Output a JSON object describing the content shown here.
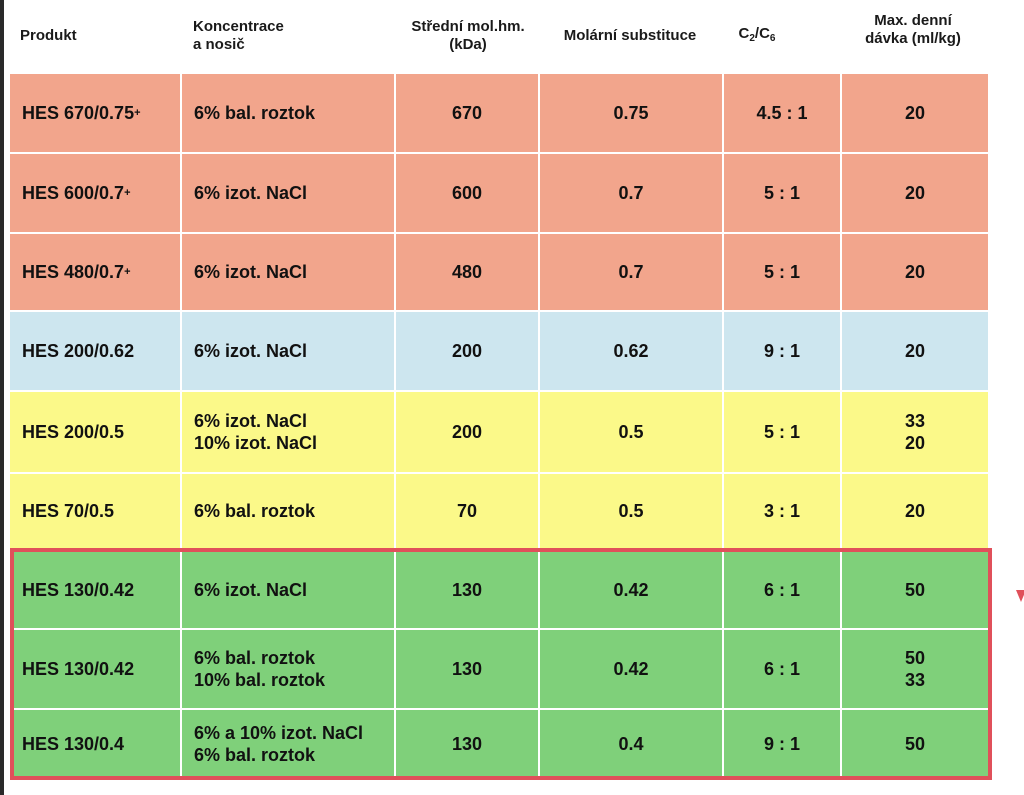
{
  "header": {
    "produkt": "Produkt",
    "koncentrace_line1": "Koncentrace",
    "koncentrace_line2": "a nosič",
    "mol_line1": "Střední mol.hm.",
    "mol_line2": "(kDa)",
    "substituce": "Molární substituce",
    "ratio_c1": "C",
    "ratio_sub1": "2",
    "ratio_slash": "/C",
    "ratio_sub2": "6",
    "davka_line1": "Max. denní",
    "davka_line2": "dávka (ml/kg)"
  },
  "rows": [
    {
      "produkt": "HES 670/0.75",
      "plus": "+",
      "koncentrace": "6% bal. roztok",
      "mol": "670",
      "subst": "0.75",
      "ratio": "4.5 : 1",
      "davka": "20",
      "color": "#f2a58c"
    },
    {
      "produkt": "HES 600/0.7",
      "plus": "+",
      "koncentrace": "6% izot. NaCl",
      "mol": "600",
      "subst": "0.7",
      "ratio": "5 : 1",
      "davka": "20",
      "color": "#f2a58c"
    },
    {
      "produkt": "HES 480/0.7",
      "plus": "+",
      "koncentrace": "6% izot. NaCl",
      "mol": "480",
      "subst": "0.7",
      "ratio": "5 : 1",
      "davka": "20",
      "color": "#f2a58c"
    },
    {
      "produkt": "HES 200/0.62",
      "plus": "",
      "koncentrace": "6% izot. NaCl",
      "mol": "200",
      "subst": "0.62",
      "ratio": "9 : 1",
      "davka": "20",
      "color": "#cde6ef"
    },
    {
      "produkt": "HES 200/0.5",
      "plus": "",
      "koncentrace": "6% izot. NaCl\n10% izot. NaCl",
      "mol": "200",
      "subst": "0.5",
      "ratio": "5 : 1",
      "davka": "33\n20",
      "color": "#fbf989"
    },
    {
      "produkt": "HES 70/0.5",
      "plus": "",
      "koncentrace": "6% bal. roztok",
      "mol": "70",
      "subst": "0.5",
      "ratio": "3 : 1",
      "davka": "20",
      "color": "#fbf989"
    },
    {
      "produkt": "HES 130/0.42",
      "plus": "",
      "koncentrace": "6% izot. NaCl",
      "mol": "130",
      "subst": "0.42",
      "ratio": "6 : 1",
      "davka": "50",
      "color": "#7fd07a"
    },
    {
      "produkt": "HES 130/0.42",
      "plus": "",
      "koncentrace": "6% bal. roztok\n10% bal. roztok",
      "mol": "130",
      "subst": "0.42",
      "ratio": "6 : 1",
      "davka": "50\n33",
      "color": "#7fd07a"
    },
    {
      "produkt": "HES 130/0.4",
      "plus": "",
      "koncentrace": "6% a 10% izot. NaCl\n6% bal. roztok",
      "mol": "130",
      "subst": "0.4",
      "ratio": "9 : 1",
      "davka": "50",
      "color": "#7fd07a"
    }
  ],
  "colors": {
    "salmon": "#f2a58c",
    "light_blue": "#cde6ef",
    "yellow": "#fbf989",
    "green": "#7fd07a",
    "highlight_border": "#e0505a"
  }
}
